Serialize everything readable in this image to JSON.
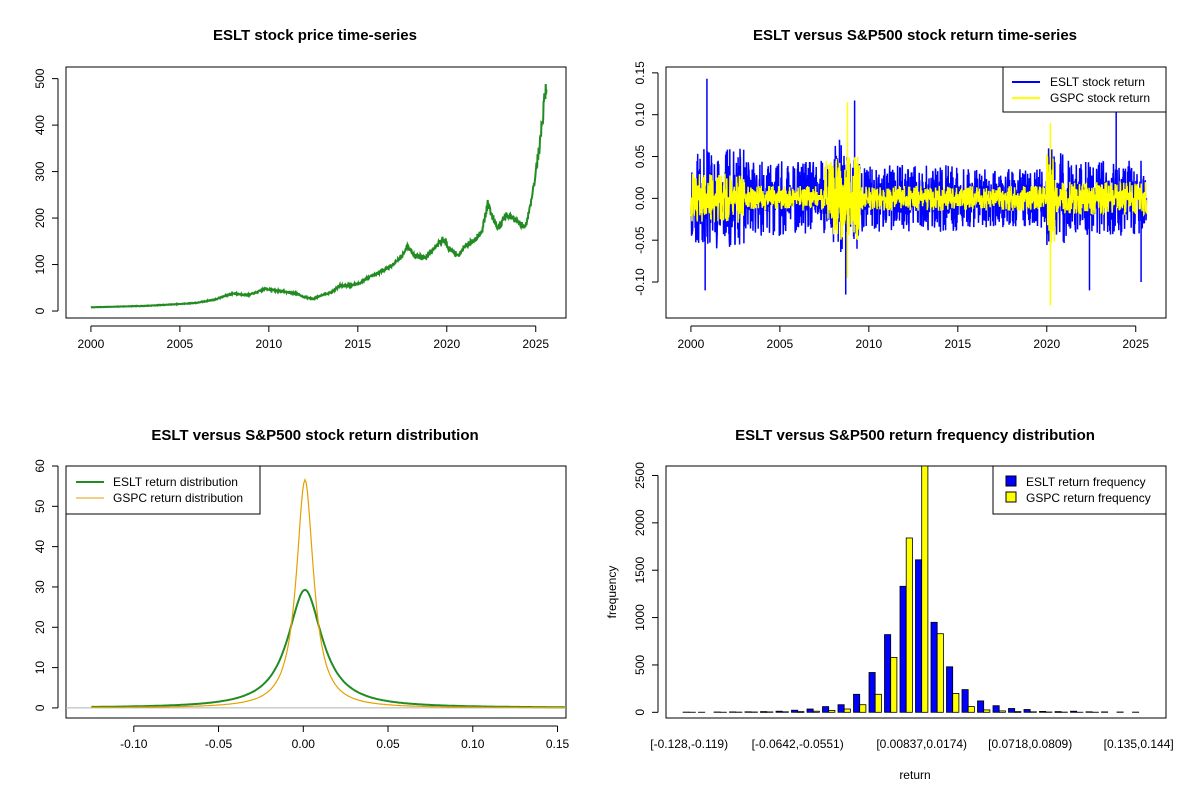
{
  "chart_data": [
    {
      "type": "line",
      "title": "ESLT stock price time-series",
      "xlabel": "",
      "ylabel": "",
      "xlim": [
        2000,
        2025.6
      ],
      "ylim": [
        0,
        500
      ],
      "x_ticks": [
        "2000",
        "2005",
        "2010",
        "2015",
        "2020",
        "2025"
      ],
      "y_ticks": [
        "0",
        "100",
        "200",
        "300",
        "400",
        "500"
      ],
      "color": "#228B22",
      "series": [
        {
          "x": [
            2000,
            2001,
            2002,
            2003,
            2004,
            2005,
            2006,
            2007,
            2007.5,
            2008,
            2008.8,
            2009.3,
            2009.8,
            2010.3,
            2010.8,
            2011.5,
            2012,
            2012.5,
            2013,
            2013.5,
            2014,
            2014.5,
            2015,
            2015.5,
            2016,
            2016.5,
            2017,
            2017.5,
            2017.8,
            2018.2,
            2018.8,
            2019.3,
            2019.8,
            2020.2,
            2020.7,
            2021,
            2021.5,
            2022,
            2022.3,
            2022.6,
            2022.9,
            2023.3,
            2023.7,
            2024,
            2024.4,
            2024.6,
            2024.8,
            2025,
            2025.2,
            2025.4,
            2025.5,
            2025.6
          ],
          "values": [
            8,
            9,
            10,
            11,
            13,
            15,
            18,
            25,
            32,
            38,
            34,
            40,
            48,
            45,
            42,
            38,
            30,
            26,
            35,
            40,
            55,
            55,
            58,
            70,
            78,
            90,
            100,
            120,
            140,
            120,
            115,
            135,
            155,
            130,
            120,
            140,
            150,
            175,
            230,
            200,
            180,
            205,
            200,
            190,
            180,
            210,
            250,
            300,
            350,
            420,
            460,
            490
          ]
        }
      ]
    },
    {
      "type": "line",
      "title": "ESLT versus S&P500 stock return time-series",
      "xlabel": "",
      "ylabel": "",
      "xlim": [
        2000,
        2025.6
      ],
      "ylim": [
        -0.13,
        0.15
      ],
      "x_ticks": [
        "2000",
        "2005",
        "2010",
        "2015",
        "2020",
        "2025"
      ],
      "y_ticks": [
        "-0.10",
        "-0.05",
        "0.00",
        "0.05",
        "0.10",
        "0.15"
      ],
      "series": [
        {
          "name": "ESLT stock return",
          "color": "#0000FF",
          "volatility_by_period": [
            [
              2000,
              2003,
              0.06
            ],
            [
              2003,
              2008,
              0.045
            ],
            [
              2008,
              2009.5,
              0.07
            ],
            [
              2009.5,
              2015,
              0.04
            ],
            [
              2015,
              2020,
              0.035
            ],
            [
              2020,
              2021,
              0.06
            ],
            [
              2021,
              2025.6,
              0.045
            ]
          ],
          "extremes": [
            [
              2000.9,
              0.143
            ],
            [
              2000.8,
              -0.11
            ],
            [
              2008.7,
              -0.115
            ],
            [
              2009.2,
              0.117
            ],
            [
              2023.9,
              0.127
            ],
            [
              2025.3,
              -0.1
            ],
            [
              2022.4,
              -0.11
            ]
          ]
        },
        {
          "name": "GSPC stock return",
          "color": "#FFFF00",
          "volatility_by_period": [
            [
              2000,
              2003,
              0.03
            ],
            [
              2003,
              2007.5,
              0.015
            ],
            [
              2007.5,
              2009.5,
              0.05
            ],
            [
              2009.5,
              2020,
              0.015
            ],
            [
              2020,
              2020.5,
              0.06
            ],
            [
              2020.5,
              2025.6,
              0.02
            ]
          ],
          "extremes": [
            [
              2008.8,
              0.115
            ],
            [
              2020.2,
              -0.128
            ],
            [
              2020.2,
              0.09
            ],
            [
              2008.8,
              -0.095
            ]
          ]
        }
      ],
      "legend": "top-right"
    },
    {
      "type": "line",
      "title": "ESLT versus S&P500 stock return distribution",
      "xlabel": "",
      "ylabel": "",
      "xlim": [
        -0.14,
        0.155
      ],
      "ylim": [
        -1,
        60
      ],
      "x_ticks": [
        "-0.10",
        "-0.05",
        "0.00",
        "0.05",
        "0.10",
        "0.15"
      ],
      "y_ticks": [
        "0",
        "10",
        "20",
        "30",
        "40",
        "50",
        "60"
      ],
      "series": [
        {
          "name": "ESLT return distribution",
          "color": "#228B22",
          "peak": 29.3,
          "center": 0.001,
          "x_range": [
            -0.125,
            0.155
          ]
        },
        {
          "name": "GSPC return distribution",
          "color": "#E69F00",
          "peak": 56.6,
          "center": 0.001,
          "x_range": [
            -0.125,
            0.155
          ]
        }
      ],
      "legend": "top-left"
    },
    {
      "type": "bar",
      "title": "ESLT versus S&P500 return frequency distribution",
      "xlabel": "return",
      "ylabel": "frequency",
      "ylim": [
        0,
        2600
      ],
      "y_ticks": [
        "0",
        "500",
        "1000",
        "1500",
        "2000",
        "2500"
      ],
      "x_tick_labels": [
        "[-0.128,-0.119)",
        "[-0.0642,-0.0551)",
        "[0.00837,0.0174)",
        "[0.0718,0.0809)",
        "[0.135,0.144]"
      ],
      "series": [
        {
          "name": "ESLT return frequency",
          "color": "#0000FF",
          "values": [
            2,
            1,
            3,
            4,
            5,
            8,
            12,
            22,
            35,
            60,
            80,
            190,
            420,
            820,
            1330,
            1610,
            950,
            480,
            240,
            120,
            70,
            40,
            30,
            10,
            8,
            12,
            5,
            4,
            3,
            2
          ]
        },
        {
          "name": "GSPC return frequency",
          "color": "#FFFF00",
          "values": [
            1,
            0,
            1,
            2,
            3,
            4,
            5,
            8,
            12,
            20,
            35,
            80,
            190,
            580,
            1840,
            2600,
            830,
            200,
            60,
            25,
            15,
            8,
            5,
            3,
            2,
            1,
            1,
            0,
            0,
            0
          ]
        }
      ],
      "legend": "top-right"
    }
  ]
}
